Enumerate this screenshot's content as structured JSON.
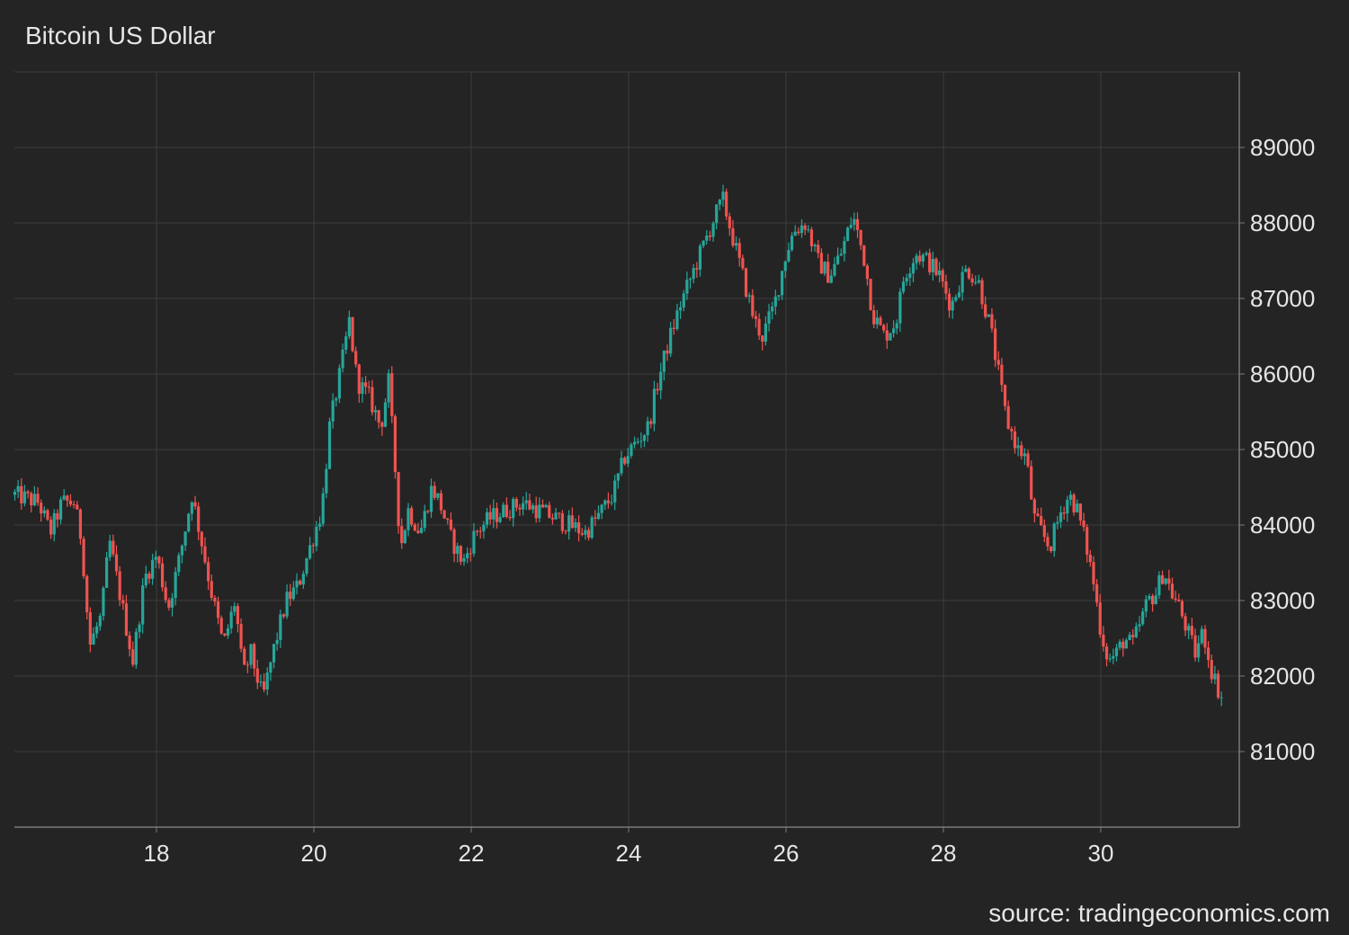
{
  "title": "Bitcoin US Dollar",
  "source": "source: tradingeconomics.com",
  "colors": {
    "background": "#242424",
    "grid": "#3c3c3c",
    "axis": "#7a7a7a",
    "up": "#26a69a",
    "down": "#ef5350",
    "text": "#e6e6e6"
  },
  "chart_data": {
    "type": "candlestick",
    "title": "Bitcoin US Dollar",
    "xlabel": "",
    "ylabel": "",
    "xlim": [
      16.2,
      31.8
    ],
    "ylim": [
      80000,
      90000
    ],
    "x_ticks": [
      18,
      20,
      22,
      24,
      26,
      28,
      30
    ],
    "y_ticks": [
      81000,
      82000,
      83000,
      84000,
      85000,
      86000,
      87000,
      88000,
      89000
    ],
    "y_axis_side": "right",
    "grid": true,
    "legend": "none",
    "series": [
      {
        "name": "",
        "close_path": [
          [
            16.2,
            84400
          ],
          [
            16.5,
            84300
          ],
          [
            16.65,
            83900
          ],
          [
            16.8,
            84300
          ],
          [
            16.95,
            84300
          ],
          [
            17.05,
            83800
          ],
          [
            17.15,
            82400
          ],
          [
            17.3,
            82800
          ],
          [
            17.4,
            83800
          ],
          [
            17.55,
            83000
          ],
          [
            17.7,
            82200
          ],
          [
            17.85,
            83300
          ],
          [
            18.0,
            83600
          ],
          [
            18.15,
            82900
          ],
          [
            18.3,
            83600
          ],
          [
            18.45,
            84400
          ],
          [
            18.55,
            83900
          ],
          [
            18.7,
            83100
          ],
          [
            18.85,
            82400
          ],
          [
            19.0,
            83000
          ],
          [
            19.1,
            82000
          ],
          [
            19.2,
            82300
          ],
          [
            19.35,
            81700
          ],
          [
            19.5,
            82400
          ],
          [
            19.65,
            83000
          ],
          [
            19.8,
            83200
          ],
          [
            19.95,
            83700
          ],
          [
            20.1,
            84200
          ],
          [
            20.2,
            85300
          ],
          [
            20.35,
            86100
          ],
          [
            20.45,
            86700
          ],
          [
            20.55,
            85900
          ],
          [
            20.7,
            85700
          ],
          [
            20.85,
            85300
          ],
          [
            20.95,
            85900
          ],
          [
            21.05,
            84500
          ],
          [
            21.1,
            83700
          ],
          [
            21.2,
            84200
          ],
          [
            21.35,
            83900
          ],
          [
            21.5,
            84500
          ],
          [
            21.6,
            84300
          ],
          [
            21.75,
            83800
          ],
          [
            21.9,
            83500
          ],
          [
            22.05,
            83900
          ],
          [
            22.25,
            84100
          ],
          [
            22.45,
            84200
          ],
          [
            22.65,
            84300
          ],
          [
            22.85,
            84200
          ],
          [
            23.05,
            84100
          ],
          [
            23.25,
            84000
          ],
          [
            23.45,
            83900
          ],
          [
            23.6,
            84100
          ],
          [
            23.8,
            84400
          ],
          [
            23.95,
            84900
          ],
          [
            24.1,
            85100
          ],
          [
            24.25,
            85300
          ],
          [
            24.35,
            85800
          ],
          [
            24.5,
            86400
          ],
          [
            24.65,
            86900
          ],
          [
            24.8,
            87300
          ],
          [
            24.95,
            87700
          ],
          [
            25.1,
            88100
          ],
          [
            25.2,
            88300
          ],
          [
            25.3,
            87900
          ],
          [
            25.45,
            87300
          ],
          [
            25.6,
            86700
          ],
          [
            25.7,
            86500
          ],
          [
            25.85,
            86900
          ],
          [
            26.0,
            87600
          ],
          [
            26.1,
            87900
          ],
          [
            26.25,
            88000
          ],
          [
            26.4,
            87500
          ],
          [
            26.55,
            87300
          ],
          [
            26.7,
            87600
          ],
          [
            26.85,
            88100
          ],
          [
            27.0,
            87500
          ],
          [
            27.1,
            86800
          ],
          [
            27.25,
            86500
          ],
          [
            27.4,
            86700
          ],
          [
            27.5,
            87300
          ],
          [
            27.65,
            87600
          ],
          [
            27.8,
            87500
          ],
          [
            27.95,
            87300
          ],
          [
            28.1,
            86900
          ],
          [
            28.2,
            87200
          ],
          [
            28.3,
            87400
          ],
          [
            28.45,
            87200
          ],
          [
            28.6,
            86600
          ],
          [
            28.7,
            86000
          ],
          [
            28.8,
            85400
          ],
          [
            28.95,
            85000
          ],
          [
            29.05,
            84900
          ],
          [
            29.15,
            84100
          ],
          [
            29.25,
            83900
          ],
          [
            29.35,
            83700
          ],
          [
            29.5,
            84200
          ],
          [
            29.6,
            84400
          ],
          [
            29.7,
            84200
          ],
          [
            29.8,
            83800
          ],
          [
            29.9,
            83300
          ],
          [
            30.0,
            82600
          ],
          [
            30.1,
            82200
          ],
          [
            30.2,
            82300
          ],
          [
            30.3,
            82500
          ],
          [
            30.4,
            82400
          ],
          [
            30.5,
            82700
          ],
          [
            30.6,
            83000
          ],
          [
            30.7,
            83100
          ],
          [
            30.8,
            83400
          ],
          [
            30.9,
            83100
          ],
          [
            31.0,
            82900
          ],
          [
            31.1,
            82600
          ],
          [
            31.2,
            82300
          ],
          [
            31.3,
            82600
          ],
          [
            31.4,
            82100
          ],
          [
            31.5,
            81800
          ],
          [
            31.55,
            81700
          ]
        ]
      }
    ]
  }
}
